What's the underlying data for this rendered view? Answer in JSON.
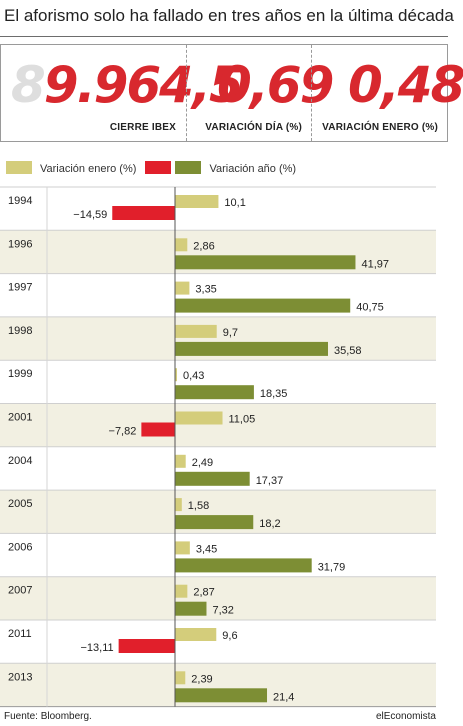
{
  "title": "El aforismo solo ha fallado en tres años en la última década",
  "readouts": [
    {
      "ghost": "8",
      "value": "9.964,5",
      "label": "CIERRE IBEX"
    },
    {
      "ghost": "",
      "value": "0,69",
      "label": "VARIACIÓN DÍA (%)"
    },
    {
      "ghost": "",
      "value": "0,48",
      "label": "VARIACIÓN ENERO (%)"
    }
  ],
  "footer": {
    "source": "Fuente: Bloomberg.",
    "brand": "elEconomista"
  },
  "colors": {
    "enero": "#d4cd7b",
    "ano_pos": "#7d8e34",
    "ano_neg": "#e11f2b",
    "band": "#f2f0e2",
    "value_red": "#d8282e"
  },
  "chart_data": {
    "type": "bar",
    "orientation": "horizontal",
    "legend": [
      "Variación enero (%)",
      "Variación año (%)"
    ],
    "legend_position": "top-left",
    "categories": [
      "1994",
      "1996",
      "1997",
      "1998",
      "1999",
      "2001",
      "2004",
      "2005",
      "2006",
      "2007",
      "2011",
      "2013"
    ],
    "series": [
      {
        "name": "Variación enero (%)",
        "values": [
          10.1,
          2.86,
          3.35,
          9.7,
          0.43,
          11.05,
          2.49,
          1.58,
          3.45,
          2.87,
          9.6,
          2.39
        ],
        "labels": [
          "10,1",
          "2,86",
          "3,35",
          "9,7",
          "0,43",
          "11,05",
          "2,49",
          "1,58",
          "3,45",
          "2,87",
          "9,6",
          "2,39"
        ]
      },
      {
        "name": "Variación año (%)",
        "values": [
          -14.59,
          41.97,
          40.75,
          35.58,
          18.35,
          -7.82,
          17.37,
          18.2,
          31.79,
          7.32,
          -13.11,
          21.4
        ],
        "labels": [
          "−14,59",
          "41,97",
          "40,75",
          "35,58",
          "18,35",
          "−7,82",
          "17,37",
          "18,2",
          "31,79",
          "7,32",
          "−13,11",
          "21,4"
        ]
      }
    ]
  }
}
